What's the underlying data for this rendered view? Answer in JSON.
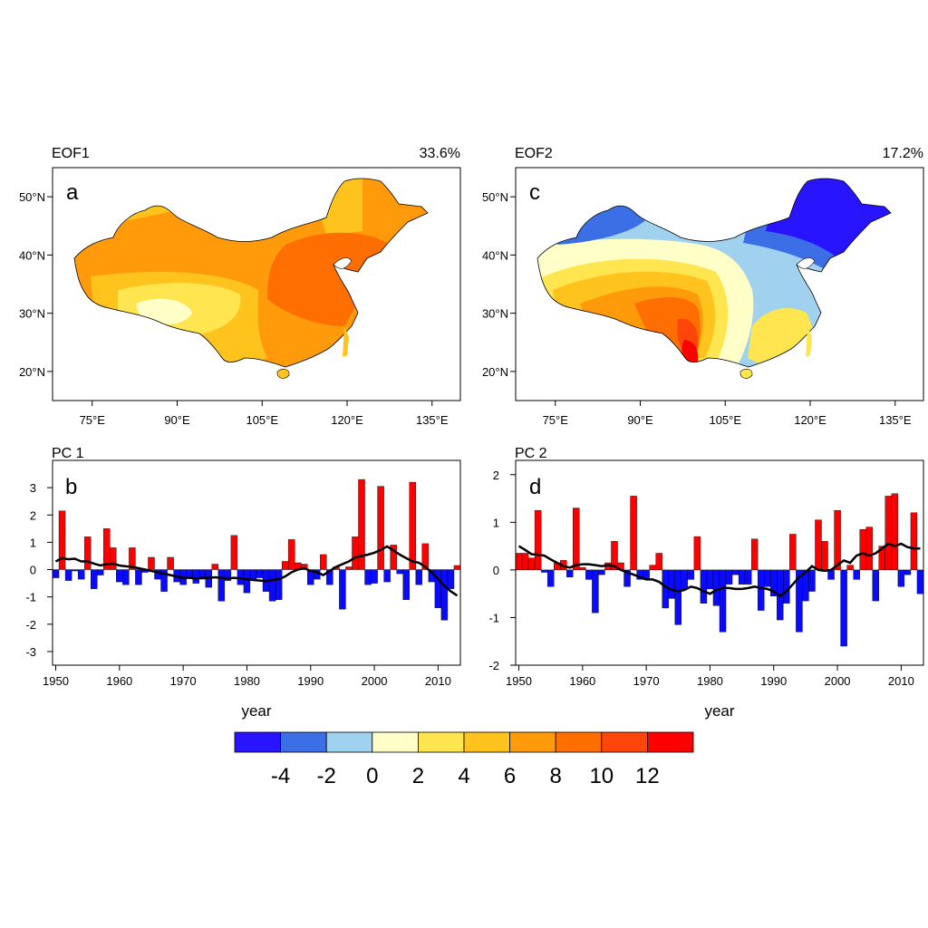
{
  "colors": {
    "bar_positive": "#ff0000",
    "bar_negative": "#0a0aff",
    "line": "#000000",
    "scale": [
      "#2814ff",
      "#3c6ee6",
      "#a0d2f0",
      "#ffffc8",
      "#ffe650",
      "#ffc31e",
      "#ff9b0a",
      "#ff6e00",
      "#ff460a",
      "#ff0000"
    ]
  },
  "colorbar": {
    "labels": [
      "-4",
      "-2",
      "0",
      "2",
      "4",
      "6",
      "8",
      "10",
      "12"
    ]
  },
  "chart_data": [
    {
      "type": "heatmap",
      "panel": "a",
      "title": "EOF1",
      "variance": "33.6%",
      "x_ticks": [
        "75°E",
        "90°E",
        "105°E",
        "120°E",
        "135°E"
      ],
      "y_ticks": [
        "50°N",
        "40°N",
        "30°N",
        "20°N"
      ],
      "xlim": [
        68,
        140
      ],
      "ylim": [
        15,
        55
      ],
      "description_values": "mostly 6-10, maximum ~10 over north-east China, 2-6 over the Tibetan Plateau"
    },
    {
      "type": "heatmap",
      "panel": "c",
      "title": "EOF2",
      "variance": "17.2%",
      "x_ticks": [
        "75°E",
        "90°E",
        "105°E",
        "120°E",
        "135°E"
      ],
      "y_ticks": [
        "50°N",
        "40°N",
        "30°N",
        "20°N"
      ],
      "xlim": [
        68,
        140
      ],
      "ylim": [
        15,
        55
      ],
      "description_values": "negative (-4 to 0) in the north-east and north-west, positive (up to 12) in the south-west"
    },
    {
      "type": "bar",
      "panel": "b",
      "title": "PC 1",
      "xlabel": "year",
      "x_ticks": [
        "1950",
        "1960",
        "1970",
        "1980",
        "1990",
        "2000",
        "2010"
      ],
      "y_ticks": [
        "3",
        "2",
        "1",
        "0",
        "-1",
        "-2",
        "-3"
      ],
      "xlim": [
        1949.5,
        2013.5
      ],
      "ylim": [
        -3.5,
        4
      ],
      "years_start": 1950,
      "values": [
        -0.3,
        2.15,
        -0.4,
        -0.05,
        -0.35,
        1.2,
        -0.7,
        -0.2,
        1.5,
        0.8,
        -0.45,
        -0.55,
        0.8,
        -0.55,
        -0.1,
        0.45,
        -0.35,
        -0.8,
        0.45,
        -0.45,
        -0.55,
        -0.3,
        -0.5,
        -0.35,
        -0.65,
        0.2,
        -1.15,
        -0.4,
        1.25,
        -0.55,
        -0.85,
        -0.35,
        -0.3,
        -0.8,
        -1.15,
        -1.1,
        0.3,
        1.1,
        0.25,
        0.2,
        -0.55,
        -0.35,
        0.55,
        -0.55,
        0.1,
        -1.45,
        0.1,
        1.2,
        3.3,
        -0.55,
        -0.5,
        3.05,
        -0.45,
        0.9,
        -0.15,
        -1.1,
        3.2,
        -0.55,
        0.95,
        -0.45,
        -1.4,
        -1.85,
        -0.7,
        0.15
      ],
      "smooth_values": [
        0.3,
        0.42,
        0.38,
        0.4,
        0.3,
        0.3,
        0.22,
        0.15,
        0.2,
        0.22,
        0.15,
        0.12,
        0.1,
        0.05,
        0.0,
        -0.05,
        -0.1,
        -0.15,
        -0.2,
        -0.25,
        -0.3,
        -0.3,
        -0.32,
        -0.3,
        -0.3,
        -0.28,
        -0.3,
        -0.32,
        -0.3,
        -0.32,
        -0.35,
        -0.38,
        -0.4,
        -0.42,
        -0.38,
        -0.35,
        -0.25,
        -0.1,
        0.0,
        0.05,
        -0.05,
        -0.1,
        -0.2,
        -0.05,
        0.1,
        0.2,
        0.3,
        0.45,
        0.5,
        0.55,
        0.62,
        0.72,
        0.85,
        0.7,
        0.55,
        0.42,
        0.3,
        0.25,
        0.1,
        -0.1,
        -0.35,
        -0.6,
        -0.8,
        -0.95
      ]
    },
    {
      "type": "bar",
      "panel": "d",
      "title": "PC 2",
      "xlabel": "year",
      "x_ticks": [
        "1950",
        "1960",
        "1970",
        "1980",
        "1990",
        "2000",
        "2010"
      ],
      "y_ticks": [
        "2",
        "1",
        "0",
        "-1",
        "-2"
      ],
      "xlim": [
        1949.5,
        2013.5
      ],
      "ylim": [
        -2,
        2.3
      ],
      "years_start": 1950,
      "values": [
        0.35,
        0.35,
        0.25,
        1.25,
        -0.05,
        -0.35,
        0.15,
        0.2,
        -0.15,
        1.3,
        0.05,
        -0.2,
        -0.9,
        -0.1,
        0.15,
        0.6,
        0.15,
        -0.35,
        1.55,
        -0.2,
        -0.2,
        0.1,
        0.35,
        -0.8,
        -0.6,
        -1.15,
        -0.4,
        -0.2,
        0.7,
        -0.7,
        -0.4,
        -0.75,
        -1.3,
        -0.3,
        -0.1,
        -0.3,
        -0.3,
        0.65,
        -0.85,
        -0.35,
        -0.55,
        -1.05,
        -0.7,
        0.75,
        -1.3,
        -0.65,
        -0.45,
        1.05,
        0.6,
        -0.2,
        1.25,
        -1.6,
        0.1,
        -0.2,
        0.85,
        0.9,
        -0.65,
        0.5,
        1.55,
        1.6,
        -0.35,
        -0.1,
        1.2,
        -0.5
      ],
      "smooth_values": [
        0.5,
        0.42,
        0.33,
        0.32,
        0.3,
        0.22,
        0.15,
        0.08,
        0.05,
        0.1,
        0.12,
        0.12,
        0.1,
        0.08,
        0.1,
        0.08,
        0.0,
        -0.05,
        -0.1,
        -0.15,
        -0.2,
        -0.2,
        -0.25,
        -0.35,
        -0.42,
        -0.45,
        -0.42,
        -0.35,
        -0.38,
        -0.45,
        -0.5,
        -0.42,
        -0.38,
        -0.38,
        -0.4,
        -0.4,
        -0.38,
        -0.35,
        -0.38,
        -0.4,
        -0.45,
        -0.55,
        -0.45,
        -0.3,
        -0.15,
        -0.05,
        0.08,
        0.0,
        -0.02,
        0.0,
        0.1,
        0.2,
        0.15,
        0.3,
        0.35,
        0.3,
        0.35,
        0.45,
        0.55,
        0.5,
        0.55,
        0.48,
        0.45,
        0.45
      ]
    }
  ]
}
